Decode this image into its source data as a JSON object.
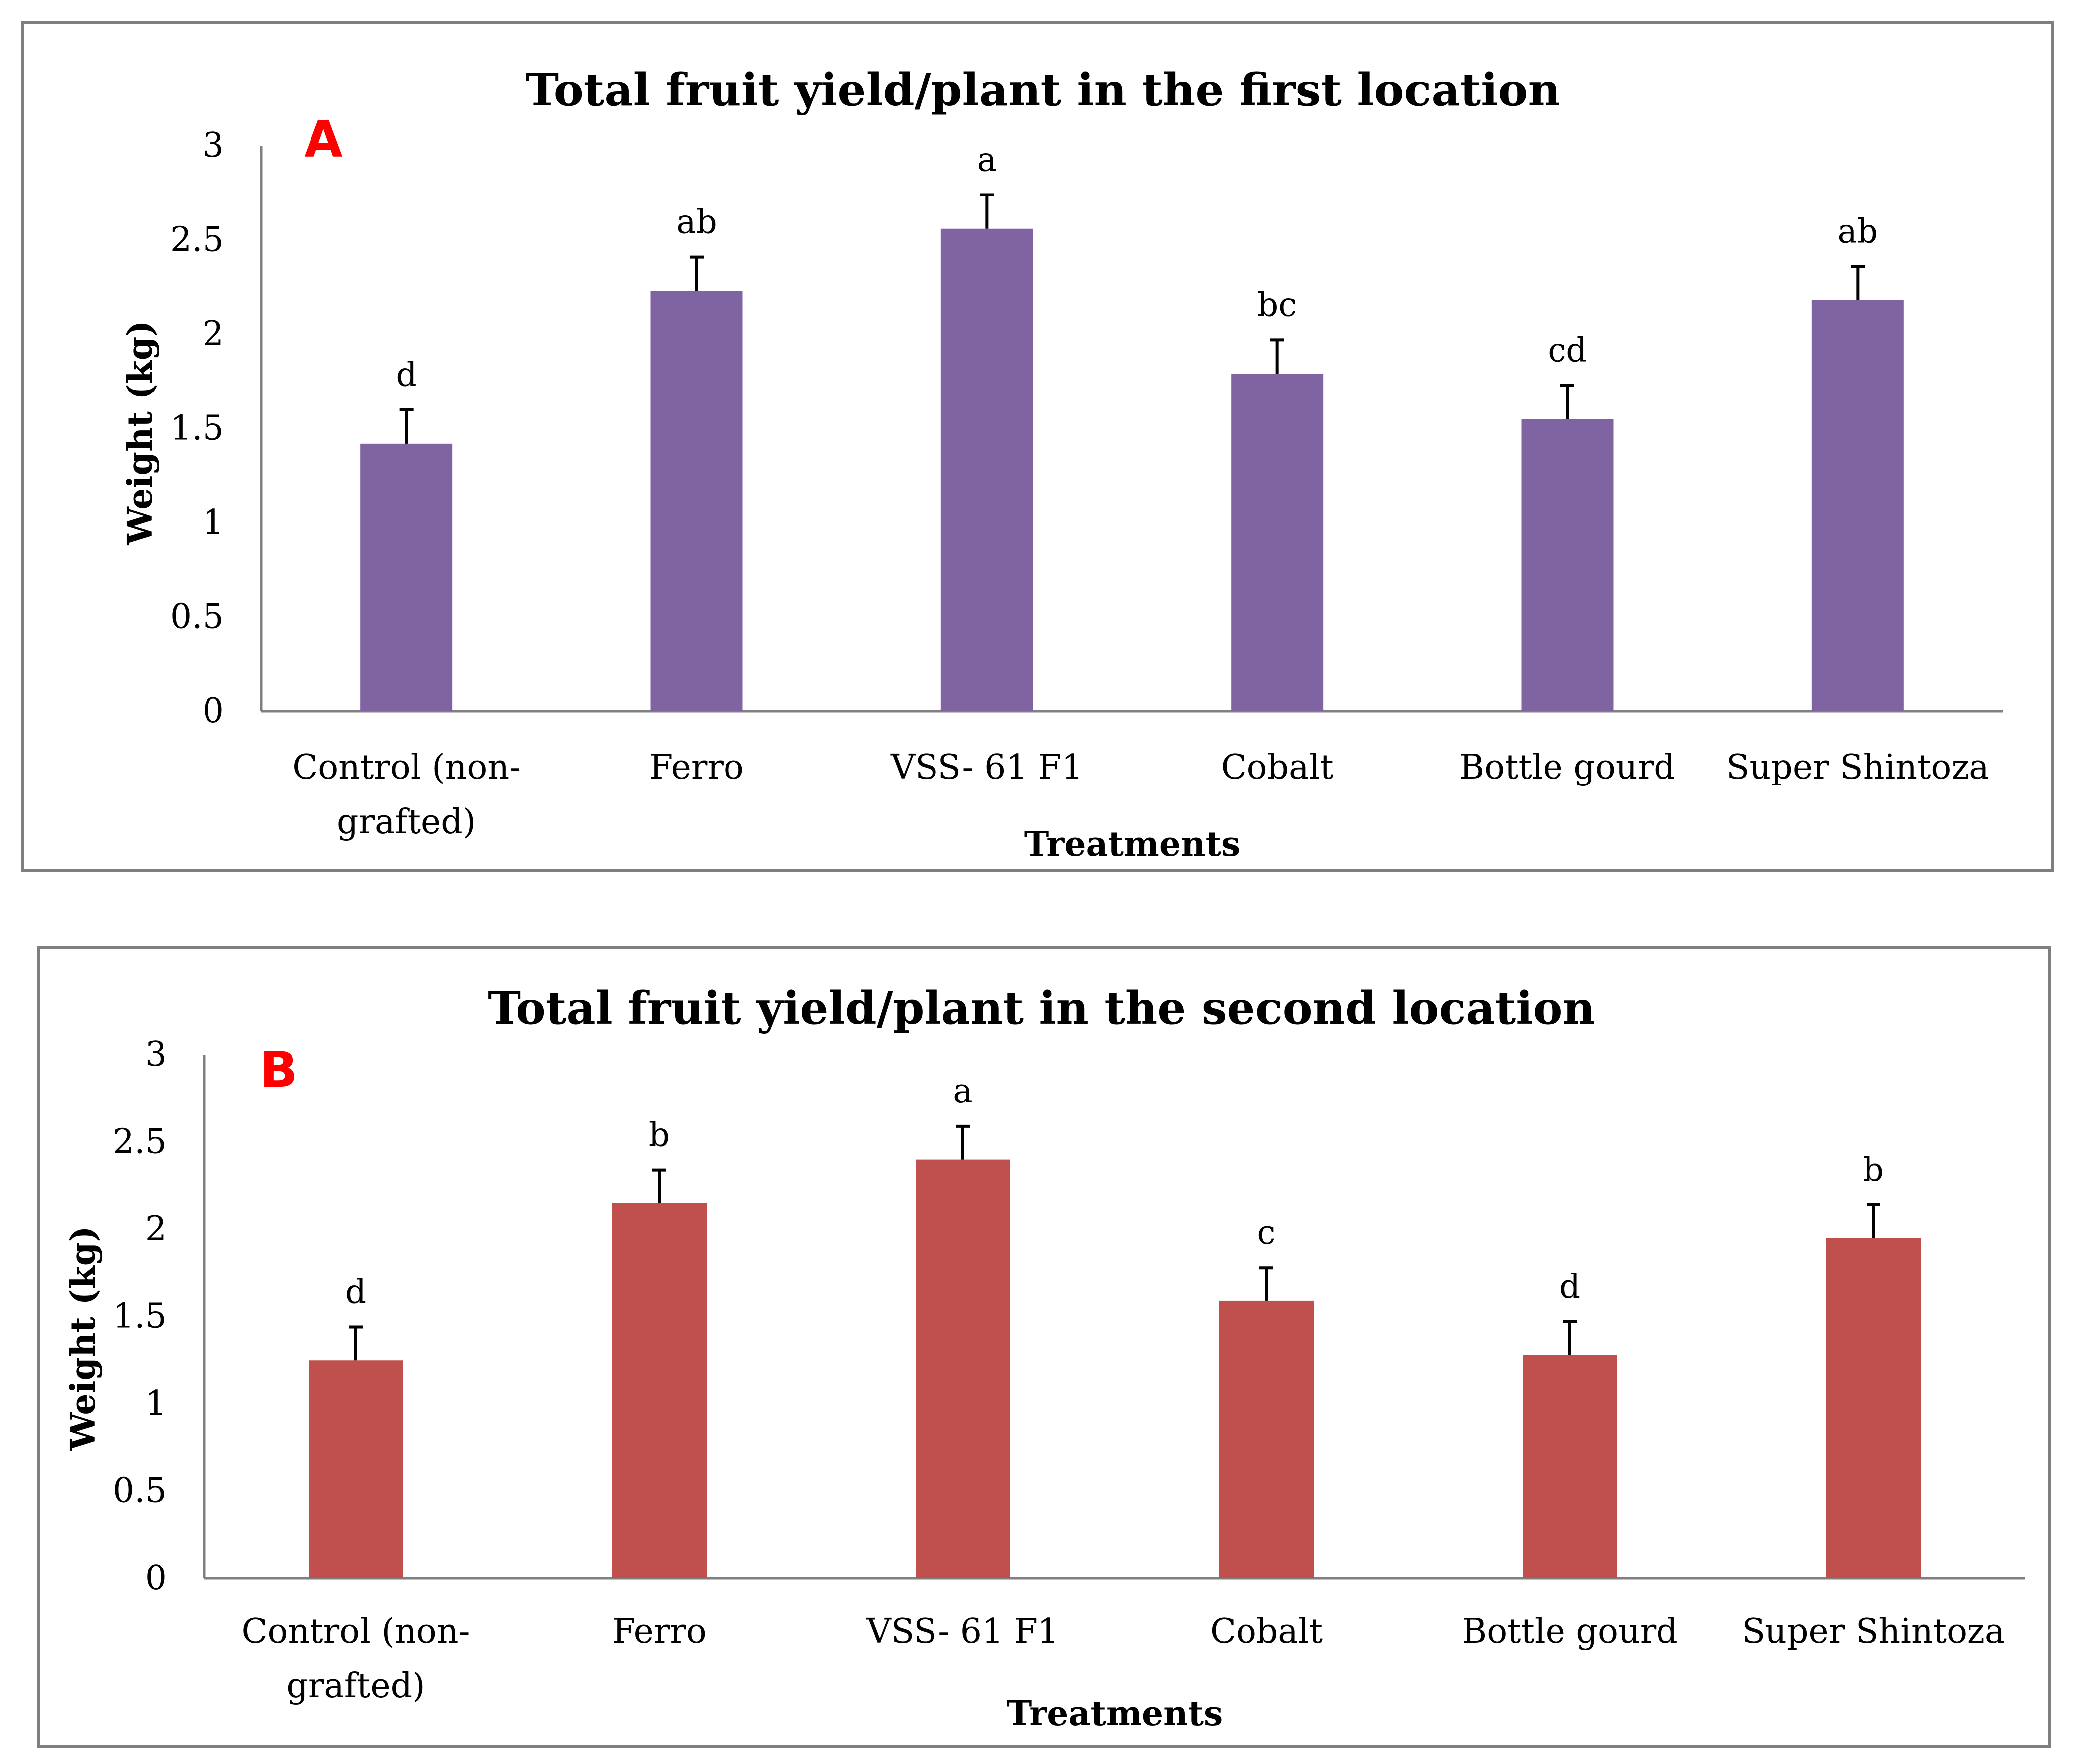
{
  "chart_data": [
    {
      "type": "bar",
      "panel_label": "A",
      "title": "Total fruit yield/plant in the first location",
      "xlabel": "Treatments",
      "ylabel": "Weight (kg)",
      "ylim": [
        0,
        3
      ],
      "yticks": [
        "0",
        "0.5",
        "1",
        "1.5",
        "2",
        "2.5",
        "3"
      ],
      "categories": [
        [
          "Control (non-",
          "grafted)"
        ],
        [
          "Ferro"
        ],
        [
          "VSS- 61 F1"
        ],
        [
          "Cobalt"
        ],
        [
          "Bottle gourd"
        ],
        [
          "Super Shintoza"
        ]
      ],
      "values": [
        1.42,
        2.23,
        2.56,
        1.79,
        1.55,
        2.18
      ],
      "errors": [
        0.18,
        0.18,
        0.18,
        0.18,
        0.18,
        0.18
      ],
      "significance": [
        "d",
        "ab",
        "a",
        "bc",
        "cd",
        "ab"
      ],
      "color": "#8064a2"
    },
    {
      "type": "bar",
      "panel_label": "B",
      "title": "Total fruit yield/plant in the second location",
      "xlabel": "Treatments",
      "ylabel": "Weight (kg)",
      "ylim": [
        0,
        3
      ],
      "yticks": [
        "0",
        "0.5",
        "1",
        "1.5",
        "2",
        "2.5",
        "3"
      ],
      "categories": [
        [
          "Control (non-",
          "grafted)"
        ],
        [
          "Ferro"
        ],
        [
          "VSS- 61 F1"
        ],
        [
          "Cobalt"
        ],
        [
          "Bottle gourd"
        ],
        [
          "Super Shintoza"
        ]
      ],
      "values": [
        1.25,
        2.15,
        2.4,
        1.59,
        1.28,
        1.95
      ],
      "errors": [
        0.19,
        0.19,
        0.19,
        0.19,
        0.19,
        0.19
      ],
      "significance": [
        "d",
        "b",
        "a",
        "c",
        "d",
        "b"
      ],
      "color": "#c0504d"
    }
  ]
}
